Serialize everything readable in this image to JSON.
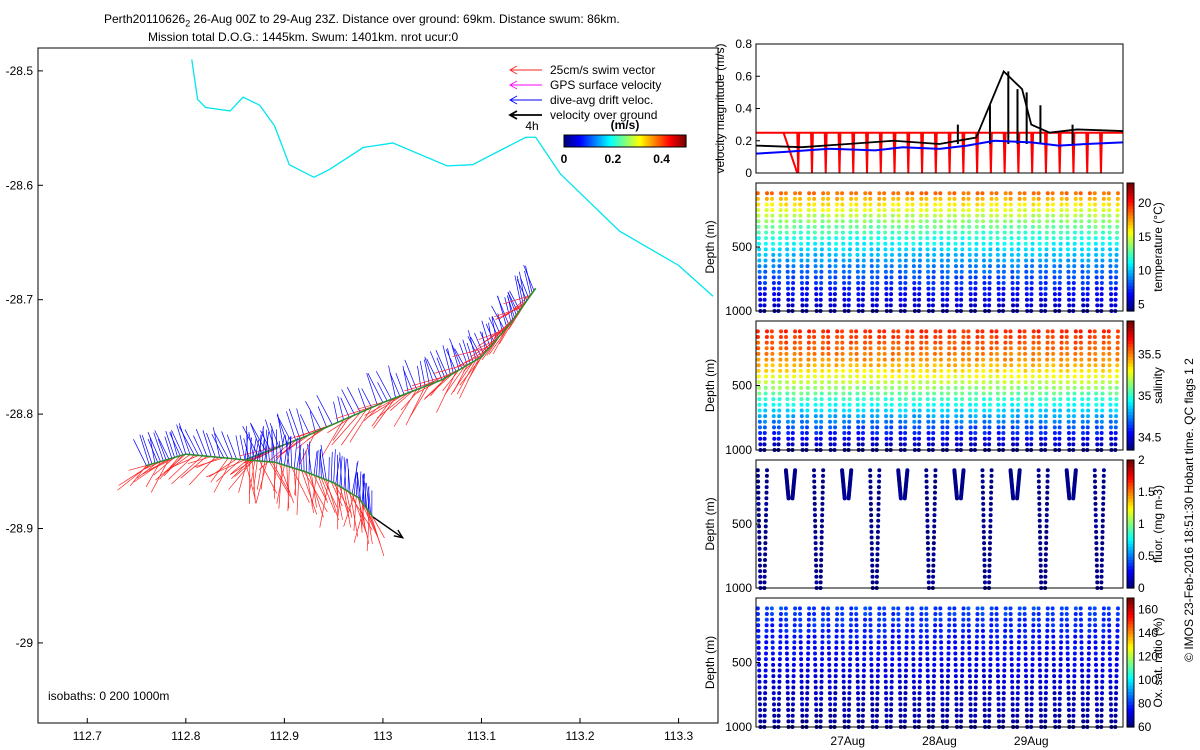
{
  "title": {
    "line1_prefix": "Perth20110626",
    "line1_sub": "2",
    "line1_rest": " 26-Aug 00Z to 29-Aug 23Z. Distance over ground: 69km. Distance swum: 86km.",
    "line2": "Mission total D.O.G.: 1445km. Swum: 1401km. nrot ucur:0"
  },
  "colors": {
    "swim": "#ff2020",
    "gps": "#ff00ff",
    "drift": "#0000ff",
    "ground": "#000000",
    "track": "#00e5ee"
  },
  "chart_data": [
    {
      "type": "map",
      "name": "glider track map",
      "xlim": [
        112.65,
        113.34
      ],
      "ylim": [
        -29.07,
        -28.48
      ],
      "xticks": [
        112.7,
        112.8,
        112.9,
        113,
        113.1,
        113.2,
        113.3
      ],
      "xtick_labels": [
        "112.7",
        "112.8",
        "112.9",
        "113",
        "113.1",
        "113.2",
        "113.3"
      ],
      "yticks": [
        -28.5,
        -28.6,
        -28.7,
        -28.8,
        -28.9,
        -29
      ],
      "ytick_labels": [
        "-28.5",
        "-28.6",
        "-28.7",
        "-28.8",
        "-28.9",
        "-29"
      ],
      "legend": [
        {
          "label": "25cm/s swim vector",
          "color": "#ff2020"
        },
        {
          "label": "GPS surface velocity",
          "color": "#ff00ff"
        },
        {
          "label": "dive-avg drift veloc.",
          "color": "#0000ff"
        },
        {
          "label": "velocity over ground",
          "color": "#000000"
        }
      ],
      "scale_label": "4h",
      "colorbar": {
        "label": "(m/s)",
        "ticks": [
          0,
          0.2,
          0.4
        ],
        "tick_labels": [
          "0",
          "0.2",
          "0.4"
        ],
        "range": [
          0,
          0.5
        ]
      },
      "isobaths_label": "isobaths: 0    200   1000m",
      "isobath_track": [
        {
          "x": 112.806,
          "y": -28.49
        },
        {
          "x": 112.812,
          "y": -28.525
        },
        {
          "x": 112.82,
          "y": -28.532
        },
        {
          "x": 112.845,
          "y": -28.535
        },
        {
          "x": 112.858,
          "y": -28.523
        },
        {
          "x": 112.875,
          "y": -28.53
        },
        {
          "x": 112.89,
          "y": -28.548
        },
        {
          "x": 112.905,
          "y": -28.582
        },
        {
          "x": 112.93,
          "y": -28.593
        },
        {
          "x": 112.946,
          "y": -28.586
        },
        {
          "x": 112.98,
          "y": -28.567
        },
        {
          "x": 113.01,
          "y": -28.563
        },
        {
          "x": 113.065,
          "y": -28.583
        },
        {
          "x": 113.091,
          "y": -28.582
        },
        {
          "x": 113.145,
          "y": -28.558
        },
        {
          "x": 113.155,
          "y": -28.558
        },
        {
          "x": 113.18,
          "y": -28.59
        },
        {
          "x": 113.24,
          "y": -28.64
        },
        {
          "x": 113.3,
          "y": -28.67
        },
        {
          "x": 113.335,
          "y": -28.697
        }
      ],
      "path_upper": [
        {
          "x": 112.76,
          "y": -28.845
        },
        {
          "x": 112.8,
          "y": -28.835
        },
        {
          "x": 112.86,
          "y": -28.84
        },
        {
          "x": 112.92,
          "y": -28.82
        },
        {
          "x": 113.0,
          "y": -28.79
        },
        {
          "x": 113.06,
          "y": -28.77
        },
        {
          "x": 113.1,
          "y": -28.75
        },
        {
          "x": 113.13,
          "y": -28.72
        },
        {
          "x": 113.155,
          "y": -28.69
        }
      ],
      "path_lower": [
        {
          "x": 112.86,
          "y": -28.84
        },
        {
          "x": 112.89,
          "y": -28.842
        },
        {
          "x": 112.92,
          "y": -28.85
        },
        {
          "x": 112.95,
          "y": -28.86
        },
        {
          "x": 112.975,
          "y": -28.873
        },
        {
          "x": 112.99,
          "y": -28.89
        }
      ],
      "ground_vector": {
        "from": {
          "x": 112.99,
          "y": -28.89
        },
        "to": {
          "x": 113.02,
          "y": -28.908
        }
      }
    },
    {
      "type": "line",
      "name": "velocity magnitude",
      "ylabel": "velocity magnitude (m/s)",
      "ylim": [
        0,
        0.8
      ],
      "yticks": [
        0,
        0.2,
        0.4,
        0.6,
        0.8
      ],
      "ytick_labels": [
        "0",
        "0.2",
        "0.4",
        "0.6",
        "0.8"
      ],
      "xlim": [
        0,
        4
      ],
      "series": [
        {
          "name": "swim speed",
          "color": "#ff0000",
          "x": [
            0,
            0.3,
            0.45,
            4
          ],
          "y": [
            0.25,
            0.25,
            0.0,
            0.25
          ]
        },
        {
          "name": "dive-avg drift",
          "color": "#0000ff",
          "x": [
            0,
            0.3,
            0.8,
            1.3,
            1.6,
            2.0,
            2.3,
            2.6,
            3.0,
            3.3,
            3.6,
            4
          ],
          "y": [
            0.12,
            0.13,
            0.15,
            0.14,
            0.16,
            0.15,
            0.17,
            0.2,
            0.19,
            0.17,
            0.18,
            0.19
          ]
        },
        {
          "name": "over ground",
          "color": "#000000",
          "x": [
            0,
            0.5,
            1.0,
            1.5,
            2.0,
            2.4,
            2.7,
            2.9,
            3.0,
            3.2,
            3.5,
            4
          ],
          "y": [
            0.17,
            0.16,
            0.18,
            0.2,
            0.18,
            0.22,
            0.63,
            0.52,
            0.3,
            0.25,
            0.27,
            0.26
          ]
        }
      ]
    },
    {
      "type": "scatter",
      "name": "temperature section",
      "ylabel": "Depth (m)",
      "ylim": [
        1000,
        0
      ],
      "yticks": [
        500,
        1000
      ],
      "ytick_labels": [
        "500",
        "1000"
      ],
      "colorbar_label": "temperature (°C)",
      "colorbar_range": [
        4,
        23
      ],
      "colorbar_ticks": [
        5,
        10,
        15,
        20
      ],
      "colorbar_tick_labels": [
        "5",
        "10",
        "15",
        "20"
      ]
    },
    {
      "type": "scatter",
      "name": "salinity section",
      "ylabel": "Depth (m)",
      "ylim": [
        1000,
        0
      ],
      "yticks": [
        500,
        1000
      ],
      "ytick_labels": [
        "500",
        "1000"
      ],
      "colorbar_label": "salinity",
      "colorbar_range": [
        34.35,
        35.9
      ],
      "colorbar_ticks": [
        34.5,
        35,
        35.5
      ],
      "colorbar_tick_labels": [
        "34.5",
        "35",
        "35.5"
      ]
    },
    {
      "type": "scatter",
      "name": "fluorescence section",
      "ylabel": "Depth (m)",
      "ylim": [
        1000,
        0
      ],
      "yticks": [
        500,
        1000
      ],
      "ytick_labels": [
        "500",
        "1000"
      ],
      "colorbar_label": "fluor. (mg m-3)",
      "colorbar_range": [
        0,
        2
      ],
      "colorbar_ticks": [
        0,
        0.5,
        1,
        1.5,
        2
      ],
      "colorbar_tick_labels": [
        "0",
        "0.5",
        "1",
        "1.5",
        "2"
      ]
    },
    {
      "type": "scatter",
      "name": "oxygen saturation section",
      "ylabel": "Depth (m)",
      "ylim": [
        1000,
        0
      ],
      "yticks": [
        500,
        1000
      ],
      "ytick_labels": [
        "500",
        "1000"
      ],
      "xtick_labels": [
        "27Aug",
        "28Aug",
        "29Aug"
      ],
      "xticks": [
        1,
        2,
        3
      ],
      "xlim": [
        0,
        4
      ],
      "colorbar_label": "Ox. sat. ratio (%)",
      "colorbar_range": [
        60,
        170
      ],
      "colorbar_ticks": [
        60,
        80,
        100,
        120,
        140,
        160
      ],
      "colorbar_tick_labels": [
        "60",
        "80",
        "100",
        "120",
        "140",
        "160"
      ]
    }
  ],
  "credit": "© IMOS 23-Feb-2016 18:51:30 Hobart time. QC flags 1  2"
}
